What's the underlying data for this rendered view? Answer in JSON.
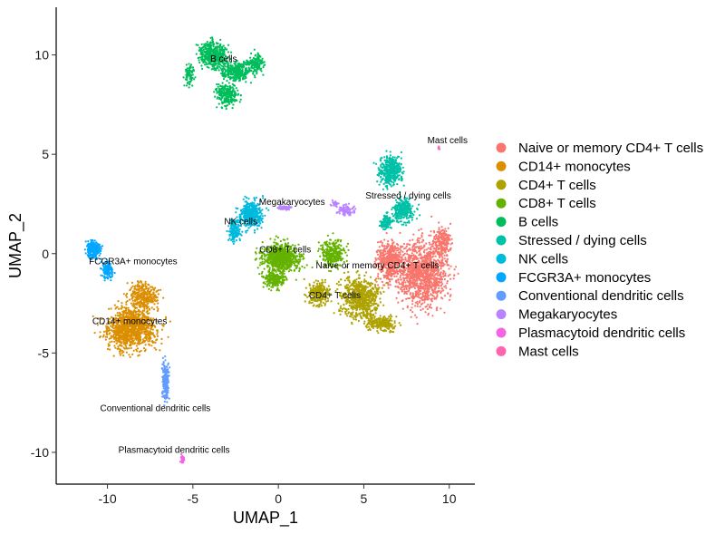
{
  "chart_data": {
    "type": "scatter",
    "xlabel": "UMAP_1",
    "ylabel": "UMAP_2",
    "xlim": [
      -13.0,
      11.5
    ],
    "ylim": [
      -11.6,
      12.4
    ],
    "x_ticks": [
      -10,
      -5,
      0,
      5,
      10
    ],
    "y_ticks": [
      -10,
      -5,
      0,
      5,
      10
    ],
    "grid": false,
    "legend_position": "right",
    "series": [
      {
        "name": "Naive or memory CD4+ T cells",
        "color": "#F8766D",
        "label": "Naive or memory CD4+ T cells",
        "label_pos": [
          5.8,
          -0.6
        ],
        "blobs": [
          [
            8.5,
            -1.0,
            2.0,
            2.3,
            1200
          ],
          [
            6.5,
            -0.4,
            1.0,
            1.5,
            450
          ],
          [
            9.6,
            0.6,
            0.7,
            1.0,
            200
          ]
        ]
      },
      {
        "name": "CD14+ monocytes",
        "color": "#DB8E00",
        "label": "CD14+ monocytes",
        "label_pos": [
          -8.7,
          -3.4
        ],
        "blobs": [
          [
            -8.6,
            -3.7,
            2.0,
            1.5,
            1100
          ],
          [
            -7.9,
            -2.1,
            1.2,
            0.9,
            300
          ]
        ]
      },
      {
        "name": "CD4+ T cells",
        "color": "#AEA200",
        "label": "CD4+ T cells",
        "label_pos": [
          3.3,
          -2.1
        ],
        "blobs": [
          [
            4.8,
            -2.2,
            1.6,
            1.4,
            700
          ],
          [
            2.4,
            -2.0,
            1.0,
            0.8,
            250
          ],
          [
            6.0,
            -3.5,
            1.2,
            0.5,
            200
          ]
        ]
      },
      {
        "name": "CD8+ T cells",
        "color": "#64B200",
        "label": "CD8+ T cells",
        "label_pos": [
          0.4,
          0.2
        ],
        "blobs": [
          [
            0.2,
            -0.2,
            1.6,
            1.0,
            700
          ],
          [
            3.2,
            0.0,
            1.0,
            0.9,
            300
          ],
          [
            -0.2,
            -1.3,
            0.9,
            0.6,
            200
          ]
        ]
      },
      {
        "name": "B cells",
        "color": "#00BD5C",
        "label": "B cells",
        "label_pos": [
          -3.2,
          9.8
        ],
        "blobs": [
          [
            -3.8,
            10.0,
            1.1,
            0.9,
            450
          ],
          [
            -2.4,
            9.2,
            1.3,
            0.7,
            350
          ],
          [
            -3.0,
            8.0,
            0.9,
            0.8,
            250
          ],
          [
            -1.3,
            9.6,
            0.6,
            0.7,
            150
          ],
          [
            -5.2,
            9.0,
            0.4,
            0.8,
            80
          ]
        ]
      },
      {
        "name": "Stressed / dying cells",
        "color": "#00C1A7",
        "label": "Stressed / dying cells",
        "label_pos": [
          7.6,
          2.9
        ],
        "blobs": [
          [
            6.6,
            4.2,
            0.9,
            1.0,
            400
          ],
          [
            7.3,
            2.2,
            0.9,
            0.8,
            300
          ],
          [
            6.3,
            1.6,
            0.5,
            0.6,
            120
          ]
        ]
      },
      {
        "name": "NK cells",
        "color": "#00BADE",
        "label": "NK cells",
        "label_pos": [
          -2.2,
          1.6
        ],
        "blobs": [
          [
            -1.6,
            2.0,
            0.9,
            1.0,
            400
          ],
          [
            -2.6,
            1.2,
            0.5,
            0.7,
            150
          ]
        ]
      },
      {
        "name": "FCGR3A+ monocytes",
        "color": "#00A6FF",
        "label": "FCGR3A+ monocytes",
        "label_pos": [
          -8.5,
          -0.4
        ],
        "blobs": [
          [
            -10.8,
            0.2,
            0.6,
            0.6,
            200
          ],
          [
            -10.0,
            -0.8,
            0.5,
            0.6,
            120
          ]
        ]
      },
      {
        "name": "Conventional dendritic cells",
        "color": "#B385FF",
        "label": "Conventional dendritic cells",
        "label_pos": [
          -7.2,
          -7.8
        ],
        "blobs": [
          [
            -6.6,
            -6.4,
            0.25,
            1.3,
            220
          ]
        ]
      },
      {
        "name": "Megakaryocytes",
        "color": "#EF67EB",
        "label": "Megakaryocytes",
        "label_pos": [
          0.8,
          2.6
        ],
        "blobs": [
          [
            0.4,
            2.3,
            0.6,
            0.15,
            60
          ],
          [
            4.0,
            2.2,
            0.8,
            0.4,
            90
          ],
          [
            3.3,
            2.5,
            0.3,
            0.2,
            30
          ]
        ]
      },
      {
        "name": "Plasmacytoid dendritic cells",
        "color": "#FF63B6",
        "label": "Plasmacytoid dendritic cells",
        "label_pos": [
          -6.1,
          -9.9
        ],
        "blobs": [
          [
            -5.6,
            -10.3,
            0.15,
            0.3,
            40
          ]
        ]
      },
      {
        "name": "Mast cells",
        "color": "#FF5C8A",
        "label": "Mast cells",
        "label_pos": [
          9.9,
          5.7
        ],
        "blobs": [
          [
            9.4,
            5.3,
            0.06,
            0.1,
            12
          ]
        ]
      }
    ],
    "legend_colors": [
      "#F8766D",
      "#DB8E00",
      "#AEA200",
      "#64B200",
      "#00BD5C",
      "#00C1A7",
      "#00BADE",
      "#00A6FF",
      "#619CFF",
      "#B983FF",
      "#F564E3",
      "#FF64B0"
    ],
    "point_colors_override": {
      "Conventional dendritic cells": "#619CFF",
      "Megakaryocytes": "#B983FF",
      "Plasmacytoid dendritic cells": "#F564E3",
      "Mast cells": "#FF64B0"
    }
  }
}
